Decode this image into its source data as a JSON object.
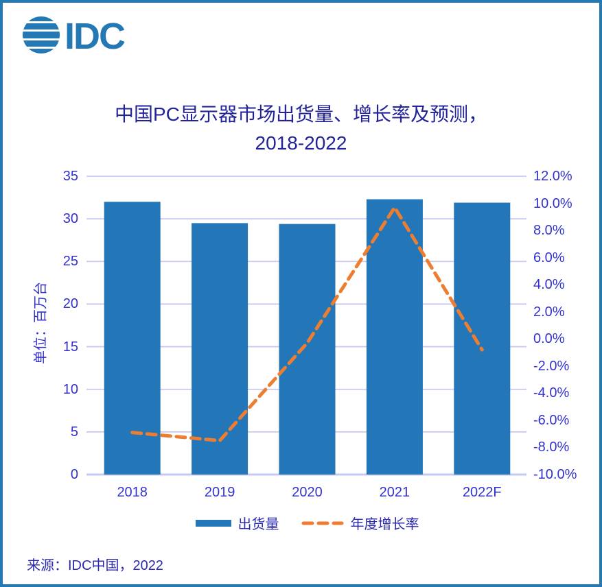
{
  "frame": {
    "border_color": "#2478B4",
    "background": "#FFFFFF"
  },
  "logo": {
    "text": "IDC",
    "color": "#2478B4"
  },
  "title": {
    "line1": "中国PC显示器市场出货量、增长率及预测，",
    "line2": "2018-2022"
  },
  "chart_data": {
    "type": "bar",
    "subtype": "bar-line-combo",
    "title": "中国PC显示器市场出货量、增长率及预测，2018-2022",
    "categories": [
      "2018",
      "2019",
      "2020",
      "2021",
      "2022F"
    ],
    "series": [
      {
        "name": "出货量",
        "type": "bar",
        "axis": "left",
        "color": "#2377B8",
        "values": [
          32.0,
          29.5,
          29.4,
          32.3,
          31.9
        ]
      },
      {
        "name": "年度增长率",
        "type": "line",
        "line_style": "dashed",
        "axis": "right",
        "color": "#ED7D31",
        "values_pct": [
          -6.9,
          -7.5,
          -0.3,
          9.7,
          -0.8
        ]
      }
    ],
    "left_axis": {
      "label": "单位：百万台",
      "min": 0,
      "max": 35,
      "step": 5,
      "ticks": [
        "35",
        "30",
        "25",
        "20",
        "15",
        "10",
        "5",
        "0"
      ]
    },
    "right_axis": {
      "min": -10,
      "max": 12,
      "step": 2,
      "ticks": [
        "12.0%",
        "10.0%",
        "8.0%",
        "6.0%",
        "4.0%",
        "2.0%",
        "0.0%",
        "-2.0%",
        "-4.0%",
        "-6.0%",
        "-8.0%",
        "-10.0%"
      ]
    },
    "grid": "horizontal gridlines at left-axis intervals",
    "gridline_color": "#C6C9F0",
    "tick_color": "#3232CD",
    "legend_position": "bottom-center"
  },
  "legend": {
    "items": [
      {
        "label": "出货量",
        "swatch": "bar",
        "color": "#2377B8"
      },
      {
        "label": "年度增长率",
        "swatch": "dashed-line",
        "color": "#ED7D31"
      }
    ]
  },
  "source": {
    "text": "来源：IDC中国，2022"
  }
}
